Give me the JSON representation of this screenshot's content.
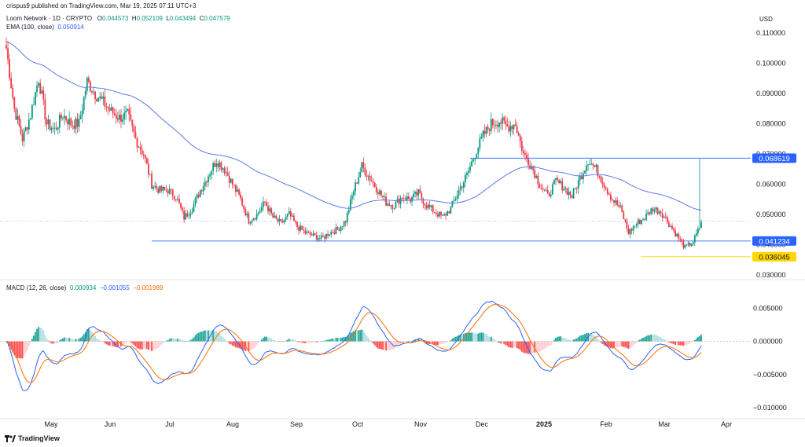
{
  "header": {
    "publisher": "crispus9 published on TradingView.com, Mar 19, 2025 07:11 UTC+3",
    "symbol": "Loom Network · 1D · CRYPTO",
    "o_label": "O",
    "o_val": "0.044573",
    "h_label": "H",
    "h_val": "0.052109",
    "l_label": "L",
    "l_val": "0.043494",
    "c_label": "C",
    "c_val": "0.047579",
    "ema_label": "EMA (100, close)",
    "ema_val": "0.050914",
    "macd_label": "MACD (12, 26, close)",
    "macd_v1": "0.000934",
    "macd_v2": "−0.001055",
    "macd_v3": "−0.001989"
  },
  "currency": "USD",
  "footer": {
    "brand": "TradingView"
  },
  "colors": {
    "up": "#089981",
    "down": "#f23645",
    "ema": "#5b7be8",
    "macd": "#2962ff",
    "signal": "#ff6d00",
    "support": "#2962ff",
    "low": "#ffd600"
  },
  "chart_data": [
    {
      "type": "candlestick",
      "title": "Loom Network · 1D · CRYPTO",
      "x_labels": [
        "May",
        "Jun",
        "Jul",
        "Aug",
        "Sep",
        "Oct",
        "Nov",
        "Dec",
        "2025",
        "Feb",
        "Mar",
        "Apr"
      ],
      "y_ticks": [
        "0.110000",
        "0.100000",
        "0.090000",
        "0.080000",
        "0.070000",
        "0.060000",
        "0.050000",
        "0.040000",
        "0.030000"
      ],
      "ylim": [
        0.0295,
        0.1105
      ],
      "price_labels": [
        {
          "value": 0.068619,
          "text": "0.068619",
          "color": "#2962ff"
        },
        {
          "value": 0.041234,
          "text": "0.041234",
          "color": "#2962ff"
        },
        {
          "value": 0.036045,
          "text": "0.036045",
          "color": "#ffd600"
        }
      ],
      "horizontal_lines": [
        {
          "value": 0.068619,
          "color": "#2962ff"
        },
        {
          "value": 0.041234,
          "color": "#2962ff"
        },
        {
          "value": 0.036045,
          "color": "#ffd600"
        }
      ],
      "ema_value": 0.050914,
      "last_close": 0.047579,
      "approx_path": [
        [
          0,
          0.105
        ],
        [
          5,
          0.085
        ],
        [
          10,
          0.075
        ],
        [
          15,
          0.083
        ],
        [
          20,
          0.095
        ],
        [
          25,
          0.08
        ],
        [
          30,
          0.078
        ],
        [
          35,
          0.083
        ],
        [
          40,
          0.08
        ],
        [
          45,
          0.08
        ],
        [
          50,
          0.094
        ],
        [
          55,
          0.09
        ],
        [
          60,
          0.087
        ],
        [
          65,
          0.084
        ],
        [
          70,
          0.082
        ],
        [
          75,
          0.083
        ],
        [
          80,
          0.075
        ],
        [
          85,
          0.07
        ],
        [
          90,
          0.06
        ],
        [
          95,
          0.058
        ],
        [
          100,
          0.058
        ],
        [
          105,
          0.056
        ],
        [
          110,
          0.049
        ],
        [
          115,
          0.052
        ],
        [
          120,
          0.058
        ],
        [
          125,
          0.063
        ],
        [
          130,
          0.068
        ],
        [
          135,
          0.065
        ],
        [
          140,
          0.06
        ],
        [
          145,
          0.055
        ],
        [
          150,
          0.048
        ],
        [
          155,
          0.05
        ],
        [
          160,
          0.054
        ],
        [
          165,
          0.049
        ],
        [
          170,
          0.047
        ],
        [
          175,
          0.05
        ],
        [
          180,
          0.046
        ],
        [
          185,
          0.044
        ],
        [
          190,
          0.043
        ],
        [
          195,
          0.042
        ],
        [
          200,
          0.044
        ],
        [
          205,
          0.045
        ],
        [
          210,
          0.048
        ],
        [
          215,
          0.058
        ],
        [
          220,
          0.066
        ],
        [
          225,
          0.062
        ],
        [
          230,
          0.058
        ],
        [
          235,
          0.054
        ],
        [
          240,
          0.053
        ],
        [
          245,
          0.056
        ],
        [
          250,
          0.055
        ],
        [
          255,
          0.057
        ],
        [
          260,
          0.053
        ],
        [
          265,
          0.051
        ],
        [
          270,
          0.049
        ],
        [
          275,
          0.052
        ],
        [
          280,
          0.058
        ],
        [
          285,
          0.063
        ],
        [
          290,
          0.07
        ],
        [
          295,
          0.076
        ],
        [
          300,
          0.08
        ],
        [
          305,
          0.081
        ],
        [
          310,
          0.079
        ],
        [
          315,
          0.08
        ],
        [
          320,
          0.07
        ],
        [
          325,
          0.066
        ],
        [
          330,
          0.06
        ],
        [
          335,
          0.056
        ],
        [
          340,
          0.061
        ],
        [
          345,
          0.059
        ],
        [
          350,
          0.056
        ],
        [
          355,
          0.062
        ],
        [
          360,
          0.068
        ],
        [
          365,
          0.065
        ],
        [
          370,
          0.06
        ],
        [
          375,
          0.055
        ],
        [
          380,
          0.052
        ],
        [
          385,
          0.044
        ],
        [
          390,
          0.047
        ],
        [
          395,
          0.049
        ],
        [
          400,
          0.052
        ],
        [
          405,
          0.051
        ],
        [
          410,
          0.047
        ],
        [
          415,
          0.043
        ],
        [
          420,
          0.039
        ],
        [
          425,
          0.041
        ],
        [
          430,
          0.047
        ]
      ]
    },
    {
      "type": "bar",
      "title": "MACD (12, 26, close)",
      "y_ticks": [
        "0.005000",
        "0.000000",
        "−0.005000",
        "−0.010000"
      ],
      "ylim": [
        -0.0113,
        0.0074
      ],
      "series": [
        {
          "name": "MACD",
          "values_approx": "path computed from price"
        },
        {
          "name": "Signal"
        },
        {
          "name": "Histogram"
        }
      ],
      "last": {
        "histogram": 0.000934,
        "macd": -0.001055,
        "signal": -0.001989
      }
    }
  ]
}
